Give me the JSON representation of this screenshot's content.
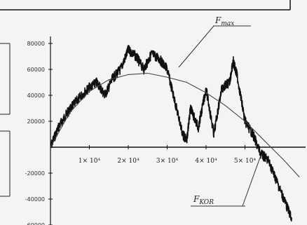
{
  "chart_data": {
    "type": "line",
    "title": "",
    "xlabel": "",
    "ylabel": "",
    "xlim": [
      0,
      70000
    ],
    "ylim": [
      -60000,
      85000
    ],
    "x_ticks": [
      {
        "value": 10000,
        "label": "1× 10⁴"
      },
      {
        "value": 20000,
        "label": "2× 10⁴"
      },
      {
        "value": 30000,
        "label": "3× 10⁴"
      },
      {
        "value": 40000,
        "label": "4× 10⁴"
      },
      {
        "value": 50000,
        "label": "5× 10⁴"
      }
    ],
    "y_ticks": [
      {
        "value": 80000,
        "label": "80000"
      },
      {
        "value": 60000,
        "label": "60000"
      },
      {
        "value": 40000,
        "label": "40000"
      },
      {
        "value": 20000,
        "label": "20000"
      },
      {
        "value": 0,
        "label": "0"
      },
      {
        "value": -20000,
        "label": "-20000"
      },
      {
        "value": -40000,
        "label": "-40000"
      },
      {
        "value": -60000,
        "label": "-60000"
      }
    ],
    "series": [
      {
        "name": "",
        "style": "noisy-measured",
        "x": [
          0,
          2000,
          4000,
          6000,
          8000,
          10000,
          12000,
          14000,
          16000,
          18000,
          20000,
          22000,
          24000,
          26000,
          28000,
          30000,
          32000,
          34000,
          35000,
          36000,
          38000,
          40000,
          42000,
          44000,
          46000,
          47000,
          48000,
          50000,
          52000,
          54000,
          56000,
          58000,
          60000,
          62000
        ],
        "y": [
          0,
          15000,
          25000,
          33000,
          40000,
          46000,
          50000,
          40000,
          53000,
          60000,
          75000,
          70000,
          60000,
          72000,
          68000,
          60000,
          35000,
          10000,
          5000,
          30000,
          15000,
          45000,
          10000,
          45000,
          50000,
          66000,
          55000,
          20000,
          10000,
          -5000,
          -10000,
          -25000,
          -40000,
          -55000
        ]
      },
      {
        "name": "",
        "style": "smooth-fit",
        "x": [
          0,
          5000,
          10000,
          15000,
          20000,
          25000,
          30000,
          35000,
          40000,
          45000,
          50000,
          55000,
          60000,
          64000
        ],
        "y": [
          0,
          27000,
          43000,
          52000,
          56000,
          57000,
          54000,
          50000,
          42000,
          32000,
          20000,
          5000,
          -10000,
          -23000
        ]
      }
    ],
    "annotations": [
      {
        "text": "F",
        "sub": "max",
        "target_x": 30000,
        "target_y": 62000
      },
      {
        "text": "F",
        "sub": "KOR",
        "target_x": 53000,
        "target_y": 0
      }
    ],
    "grid": false,
    "legend": "none"
  }
}
